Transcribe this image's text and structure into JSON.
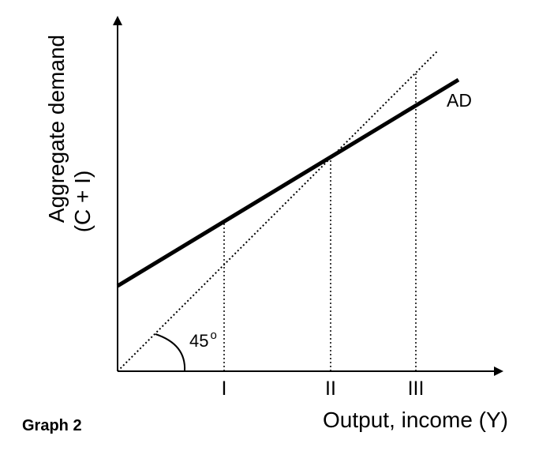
{
  "caption": "Graph 2",
  "chart_data": {
    "type": "line",
    "title": "",
    "xlabel": "Output, income (Y)",
    "ylabel_line1": "Aggregate demand",
    "ylabel_line2": "(C + I)",
    "xlim": [
      0,
      100
    ],
    "ylim": [
      0,
      100
    ],
    "grid": false,
    "x_ticks": [
      {
        "label": "I",
        "x": 30
      },
      {
        "label": "II",
        "x": 60
      },
      {
        "label": "III",
        "x": 84
      }
    ],
    "series": [
      {
        "name": "AD",
        "style": "solid",
        "color": "#000000",
        "x": [
          0,
          96
        ],
        "y": [
          24,
          82
        ]
      },
      {
        "name": "",
        "style": "dotted",
        "color": "#000000",
        "x": [
          0,
          90
        ],
        "y": [
          0,
          90
        ]
      }
    ],
    "annotations": {
      "angle_label": "45",
      "angle_superscript": "o"
    }
  }
}
